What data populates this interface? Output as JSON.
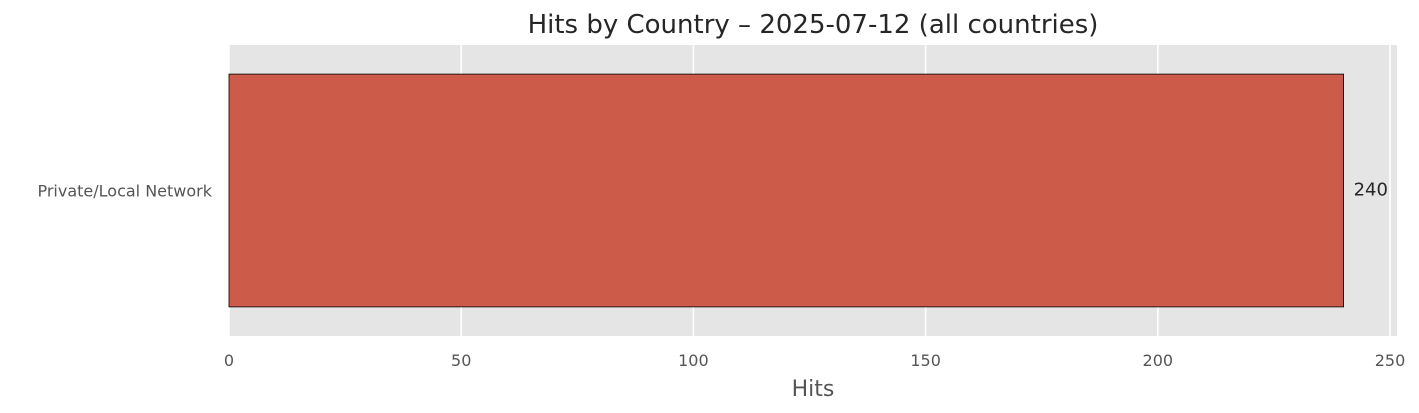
{
  "chart_data": {
    "type": "bar",
    "orientation": "horizontal",
    "title": "Hits by Country – 2025-07-12 (all countries)",
    "xlabel": "Hits",
    "ylabel": "",
    "categories": [
      "Private/Local Network"
    ],
    "values": [
      240
    ],
    "data_labels": [
      "240"
    ],
    "xlim": [
      0,
      251.5
    ],
    "x_ticks": [
      0,
      50,
      100,
      150,
      200,
      250
    ],
    "x_tick_labels": [
      "0",
      "50",
      "100",
      "150",
      "200",
      "250"
    ],
    "grid": true,
    "legend": "none",
    "colors": {
      "bar": "#cd5b49",
      "bar_edge": "#000000",
      "plot_background": "#e5e5e5",
      "grid": "#ffffff"
    }
  }
}
